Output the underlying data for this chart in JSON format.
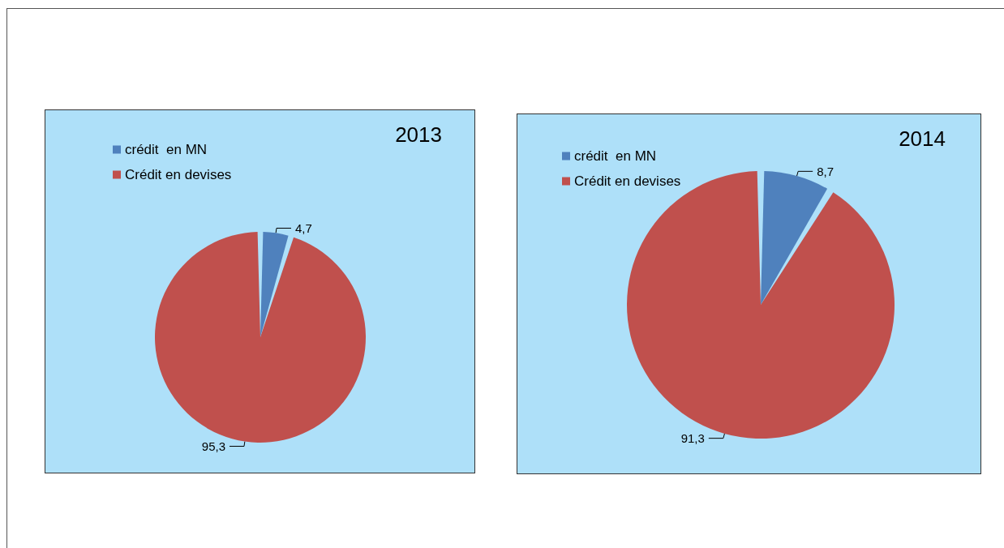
{
  "chart_data": [
    {
      "type": "pie",
      "title": "2013",
      "categories": [
        "crédit  en MN",
        "Crédit en devises"
      ],
      "values": [
        4.7,
        95.3
      ],
      "colors": [
        "#4f81bd",
        "#c0504d"
      ],
      "value_labels": [
        "4,7",
        "95,3"
      ],
      "legend": "top left"
    },
    {
      "type": "pie",
      "title": "2014",
      "categories": [
        "crédit  en MN",
        "Crédit en devises"
      ],
      "values": [
        8.7,
        91.3
      ],
      "colors": [
        "#4f81bd",
        "#c0504d"
      ],
      "value_labels": [
        "8,7",
        "91,3"
      ],
      "legend": "top left"
    }
  ]
}
